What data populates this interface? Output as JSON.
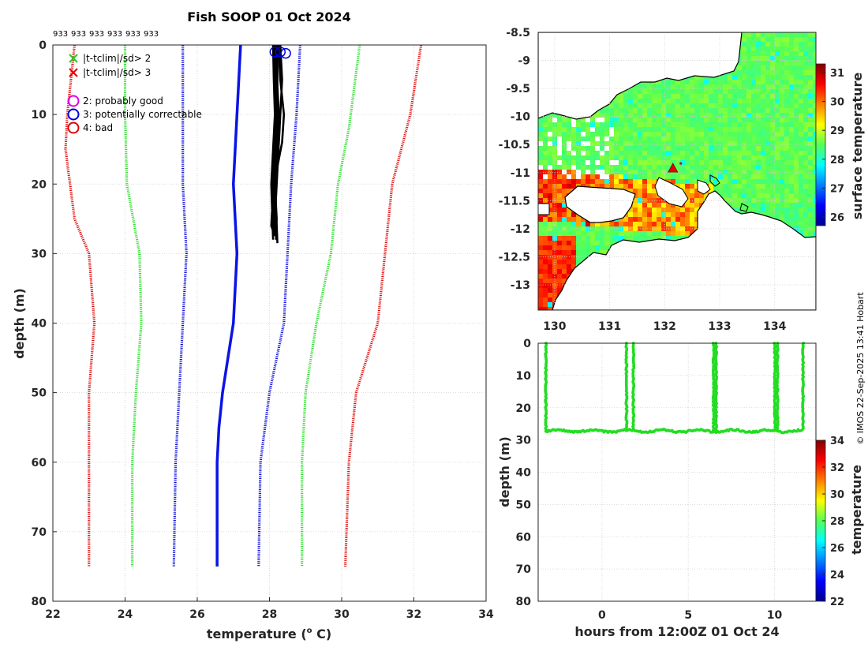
{
  "title": "Fish SOOP 01 Oct 2024",
  "credit": "© IMOS 22-Sep-2025 13:41 Hobart",
  "colors": {
    "red": "#e00000",
    "green": "#22dd22",
    "blue": "#0000dd",
    "profile_blue": "#0a14e6",
    "black": "#000000",
    "magenta": "#e000e0"
  },
  "chart_data": [
    {
      "id": "profile",
      "type": "line",
      "title": "Fish SOOP 01 Oct 2024",
      "xlabel": "temperature (o C)",
      "ylabel": "depth (m)",
      "xlim": [
        22,
        34
      ],
      "ylim": [
        80,
        0
      ],
      "xticks": [
        "22",
        "24",
        "26",
        "28",
        "30",
        "32",
        "34"
      ],
      "yticks": [
        "0",
        "10",
        "20",
        "30",
        "40",
        "50",
        "60",
        "70",
        "80"
      ],
      "grid": true,
      "top_counts": [
        "933",
        "933",
        "933",
        "933",
        "933",
        "933"
      ],
      "legend": [
        {
          "marker": "x",
          "color": "#22cc22",
          "label": "|t-tclim|/sd> 2"
        },
        {
          "marker": "x",
          "color": "#e00000",
          "label": "|t-tclim|/sd> 3"
        },
        {
          "marker": "o",
          "color": "#e000e0",
          "label": "2: probably good"
        },
        {
          "marker": "o",
          "color": "#0000dd",
          "label": "3: potentially correctable"
        },
        {
          "marker": "o",
          "color": "#e00000",
          "label": "4: bad"
        }
      ],
      "series": [
        {
          "name": "clim-3sd",
          "style": "dotted",
          "color": "#e00000",
          "points": [
            [
              22.6,
              0
            ],
            [
              22.4,
              10
            ],
            [
              22.35,
              15
            ],
            [
              22.6,
              25
            ],
            [
              23.0,
              30
            ],
            [
              23.15,
              40
            ],
            [
              23.0,
              50
            ],
            [
              23.0,
              60
            ],
            [
              23.0,
              75
            ]
          ]
        },
        {
          "name": "clim-2sd",
          "style": "dotted",
          "color": "#22dd22",
          "points": [
            [
              24.0,
              0
            ],
            [
              24.0,
              10
            ],
            [
              24.05,
              20
            ],
            [
              24.4,
              30
            ],
            [
              24.45,
              40
            ],
            [
              24.3,
              50
            ],
            [
              24.2,
              60
            ],
            [
              24.2,
              75
            ]
          ]
        },
        {
          "name": "clim-1sd",
          "style": "dotted",
          "color": "#0000dd",
          "points": [
            [
              25.6,
              0
            ],
            [
              25.6,
              10
            ],
            [
              25.6,
              20
            ],
            [
              25.7,
              30
            ],
            [
              25.6,
              40
            ],
            [
              25.5,
              50
            ],
            [
              25.4,
              60
            ],
            [
              25.35,
              75
            ]
          ]
        },
        {
          "name": "clim-mean",
          "style": "solid",
          "color": "#0a14e6",
          "points": [
            [
              27.2,
              0
            ],
            [
              27.1,
              10
            ],
            [
              27.0,
              20
            ],
            [
              27.1,
              30
            ],
            [
              27.0,
              40
            ],
            [
              26.7,
              50
            ],
            [
              26.6,
              55
            ],
            [
              26.55,
              60
            ],
            [
              26.55,
              75
            ]
          ]
        },
        {
          "name": "clim+1sd",
          "style": "dotted",
          "color": "#0000dd",
          "points": [
            [
              28.85,
              0
            ],
            [
              28.75,
              10
            ],
            [
              28.6,
              20
            ],
            [
              28.5,
              30
            ],
            [
              28.4,
              40
            ],
            [
              28.0,
              50
            ],
            [
              27.75,
              60
            ],
            [
              27.7,
              75
            ]
          ]
        },
        {
          "name": "clim+2sd",
          "style": "dotted",
          "color": "#22dd22",
          "points": [
            [
              30.5,
              0
            ],
            [
              30.2,
              12
            ],
            [
              29.9,
              20
            ],
            [
              29.7,
              30
            ],
            [
              29.3,
              40
            ],
            [
              29.0,
              50
            ],
            [
              28.9,
              60
            ],
            [
              28.9,
              75
            ]
          ]
        },
        {
          "name": "clim+3sd",
          "style": "dotted",
          "color": "#e00000",
          "points": [
            [
              32.2,
              0
            ],
            [
              31.9,
              10
            ],
            [
              31.4,
              20
            ],
            [
              31.2,
              30
            ],
            [
              31.0,
              40
            ],
            [
              30.4,
              50
            ],
            [
              30.2,
              60
            ],
            [
              30.1,
              75
            ]
          ]
        }
      ],
      "casts": [
        [
          [
            28.1,
            0
          ],
          [
            28.12,
            5
          ],
          [
            28.15,
            10
          ],
          [
            28.1,
            15
          ],
          [
            28.05,
            20
          ],
          [
            28.08,
            25
          ],
          [
            28.1,
            28
          ]
        ],
        [
          [
            28.18,
            0
          ],
          [
            28.2,
            5
          ],
          [
            28.25,
            10
          ],
          [
            28.2,
            15
          ],
          [
            28.15,
            20
          ],
          [
            28.2,
            25
          ],
          [
            28.18,
            28
          ]
        ],
        [
          [
            28.25,
            0
          ],
          [
            28.3,
            5
          ],
          [
            28.4,
            10
          ],
          [
            28.35,
            14
          ],
          [
            28.2,
            18
          ],
          [
            28.15,
            22
          ],
          [
            28.2,
            26
          ],
          [
            28.22,
            28.5
          ]
        ],
        [
          [
            28.15,
            0
          ],
          [
            28.15,
            5
          ],
          [
            28.2,
            10
          ],
          [
            28.15,
            15
          ],
          [
            28.1,
            20
          ],
          [
            28.12,
            25
          ],
          [
            28.15,
            27.5
          ]
        ],
        [
          [
            28.3,
            0
          ],
          [
            28.35,
            5
          ],
          [
            28.3,
            10
          ],
          [
            28.25,
            15
          ],
          [
            28.2,
            20
          ],
          [
            28.15,
            25
          ],
          [
            28.2,
            28
          ]
        ],
        [
          [
            28.22,
            0
          ],
          [
            28.22,
            6
          ],
          [
            28.28,
            12
          ],
          [
            28.2,
            17
          ],
          [
            28.1,
            21
          ],
          [
            28.05,
            26
          ],
          [
            28.12,
            27
          ]
        ]
      ],
      "flag_circles": [
        [
          28.15,
          1
        ],
        [
          28.3,
          1
        ],
        [
          28.45,
          1.2
        ]
      ]
    },
    {
      "id": "map",
      "type": "heatmap",
      "xlim": [
        129.7,
        134.75
      ],
      "ylim": [
        -13.45,
        -8.5
      ],
      "xticks": [
        "130",
        "131",
        "132",
        "133",
        "134"
      ],
      "yticks": [
        "-8.5",
        "-9",
        "-9.5",
        "-10",
        "-10.5",
        "-11",
        "-11.5",
        "-12",
        "-12.5",
        "-13"
      ],
      "grid": true,
      "colorbar_label": "surface temperature",
      "colorbar_range": [
        25.7,
        31.3
      ],
      "colorbar_ticks": [
        "26",
        "27",
        "28",
        "29",
        "30",
        "31"
      ],
      "marker_position": [
        132.15,
        -10.92
      ]
    },
    {
      "id": "timeseries",
      "type": "scatter",
      "xlabel": "hours from 12:00Z 01 Oct 24",
      "ylabel": "depth (m)",
      "xlim": [
        -3.7,
        12.4
      ],
      "ylim": [
        80,
        0
      ],
      "xticks": [
        "0",
        "5",
        "10"
      ],
      "yticks": [
        "0",
        "10",
        "20",
        "30",
        "40",
        "50",
        "60",
        "70",
        "80"
      ],
      "grid": true,
      "color": "#22dd22",
      "casts": [
        [
          -3.25,
          27.2
        ],
        [
          1.42,
          26.7
        ],
        [
          1.82,
          26.9
        ],
        [
          6.47,
          27.2
        ],
        [
          6.62,
          27.3
        ],
        [
          10.02,
          26.8
        ],
        [
          10.17,
          26.9
        ],
        [
          11.65,
          26.7
        ]
      ],
      "bottom_depth": 27.2,
      "colorbar_label": "temperature",
      "colorbar_range": [
        22,
        34
      ],
      "colorbar_ticks": [
        "22",
        "24",
        "26",
        "28",
        "30",
        "32",
        "34"
      ]
    }
  ]
}
